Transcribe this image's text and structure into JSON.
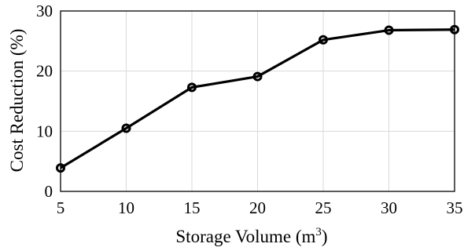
{
  "chart_data": {
    "type": "line",
    "x": [
      5,
      10,
      15,
      20,
      25,
      30,
      35
    ],
    "series": [
      {
        "values": [
          3.9,
          10.5,
          17.3,
          19.1,
          25.2,
          26.8,
          26.9
        ]
      }
    ],
    "xlabel": "Storage Volume (m",
    "xlabel_superscript": "3",
    "xlabel_suffix": ")",
    "ylabel": "Cost Reduction (%)",
    "xlim": [
      5,
      35
    ],
    "ylim": [
      0,
      30
    ],
    "xticks": [
      "5",
      "10",
      "15",
      "20",
      "25",
      "30",
      "35"
    ],
    "yticks": [
      "0",
      "10",
      "20",
      "30"
    ],
    "grid": true,
    "marker": "circle",
    "colors": {
      "series": "#000000",
      "grid": "#d9d9d9"
    }
  }
}
